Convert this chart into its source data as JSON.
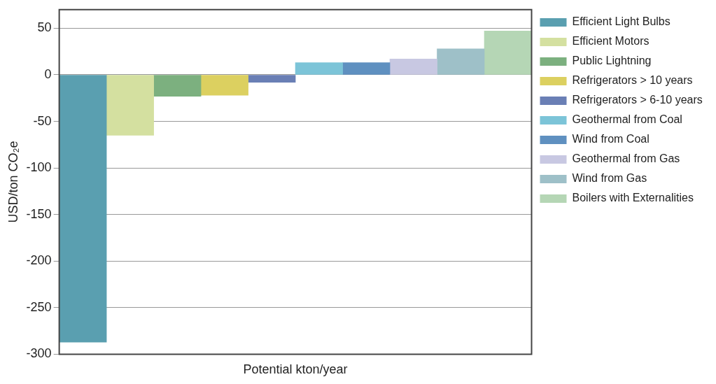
{
  "chart_data": {
    "type": "bar",
    "xlabel": "Potential kton/year",
    "ylabel": "USD/ton CO₂e",
    "categories": [
      null,
      null,
      null,
      null,
      null,
      null,
      null,
      null,
      null,
      null
    ],
    "series": [
      {
        "name": "Efficient Light Bulbs",
        "color": "#5a9fb0",
        "values": [
          -287,
          null,
          null,
          null,
          null,
          null,
          null,
          null,
          null,
          null
        ]
      },
      {
        "name": "Efficient Motors",
        "color": "#d4e0a0",
        "values": [
          null,
          -65,
          null,
          null,
          null,
          null,
          null,
          null,
          null,
          null
        ]
      },
      {
        "name": "Public Lightning",
        "color": "#7cb07f",
        "values": [
          null,
          null,
          -23,
          null,
          null,
          null,
          null,
          null,
          null,
          null
        ]
      },
      {
        "name": "Refrigerators > 10 years",
        "color": "#dcd060",
        "values": [
          null,
          null,
          null,
          -22,
          null,
          null,
          null,
          null,
          null,
          null
        ]
      },
      {
        "name": "Refrigerators > 6-10 years",
        "color": "#6a7fb5",
        "values": [
          null,
          null,
          null,
          null,
          -8,
          null,
          null,
          null,
          null,
          null
        ]
      },
      {
        "name": "Geothermal from Coal",
        "color": "#7cc4d8",
        "values": [
          null,
          null,
          null,
          null,
          null,
          13,
          null,
          null,
          null,
          null
        ]
      },
      {
        "name": "Wind from Coal",
        "color": "#5f90c0",
        "values": [
          null,
          null,
          null,
          null,
          null,
          null,
          13,
          null,
          null,
          null
        ]
      },
      {
        "name": "Geothermal from Gas",
        "color": "#c8c8e2",
        "values": [
          null,
          null,
          null,
          null,
          null,
          null,
          null,
          17,
          null,
          null
        ]
      },
      {
        "name": "Wind from Gas",
        "color": "#9ec0c8",
        "values": [
          null,
          null,
          null,
          null,
          null,
          null,
          null,
          null,
          28,
          null
        ]
      },
      {
        "name": "Boilers with Externalities",
        "color": "#b5d6b5",
        "values": [
          null,
          null,
          null,
          null,
          null,
          null,
          null,
          null,
          null,
          47
        ]
      }
    ],
    "ylim": [
      -300,
      70
    ],
    "yticks": [
      -300,
      -250,
      -200,
      -150,
      -100,
      -50,
      0,
      50
    ],
    "grid": "y",
    "legend": "right",
    "tick_labels": "y"
  }
}
